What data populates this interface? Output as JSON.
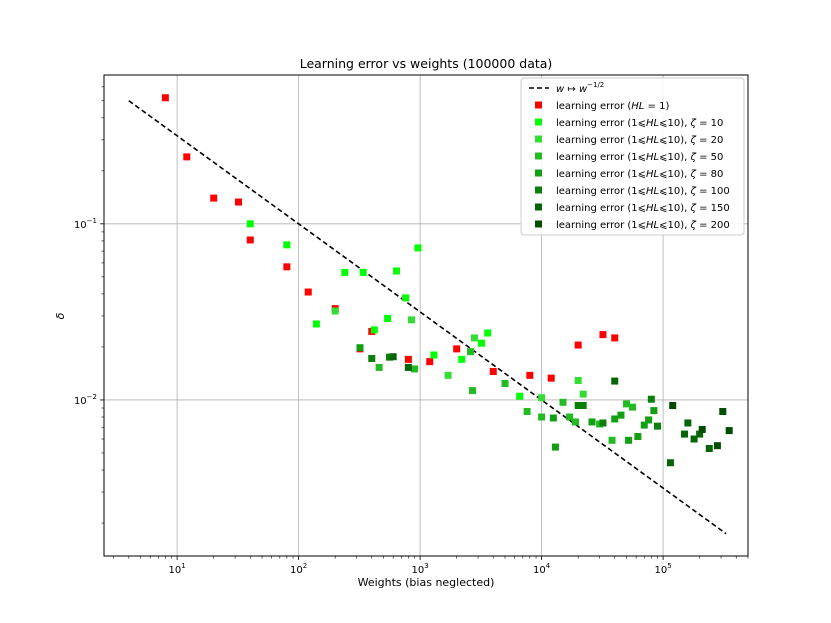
{
  "chart_data": {
    "type": "scatter",
    "title": "Learning error vs weights (100000 data)",
    "xlabel": "Weights (bias neglected)",
    "ylabel": "δ",
    "xscale": "log",
    "yscale": "log",
    "xlim": [
      2.5,
      500000
    ],
    "ylim": [
      0.0013,
      0.7
    ],
    "x_ticks": [
      {
        "value": 10,
        "base": "10",
        "exp": "1"
      },
      {
        "value": 100,
        "base": "10",
        "exp": "2"
      },
      {
        "value": 1000,
        "base": "10",
        "exp": "3"
      },
      {
        "value": 10000,
        "base": "10",
        "exp": "4"
      },
      {
        "value": 100000,
        "base": "10",
        "exp": "5"
      }
    ],
    "y_ticks": [
      {
        "value": 0.01,
        "base": "10",
        "exp": "−2"
      },
      {
        "value": 0.1,
        "base": "10",
        "exp": "−1"
      }
    ],
    "grid": true,
    "legend_position": "top-right",
    "reference_line": {
      "name": "w ↦ w^−1/2",
      "label_parts": {
        "w1": "w",
        "arrow": " ↦ ",
        "w2": "w",
        "exp": "−1/2"
      },
      "style": "dashed",
      "color": "#000000",
      "x": [
        4,
        330000
      ],
      "y": [
        0.5,
        0.00174
      ]
    },
    "series": [
      {
        "name": "learning error (HL = 1)",
        "label_parts": {
          "prefix": "learning error (",
          "hl": "HL",
          "suffix": " = 1)"
        },
        "color": "#ff0000",
        "points": [
          [
            8,
            0.52
          ],
          [
            12,
            0.24
          ],
          [
            20,
            0.14
          ],
          [
            32,
            0.133
          ],
          [
            40,
            0.081
          ],
          [
            80,
            0.057
          ],
          [
            120,
            0.041
          ],
          [
            200,
            0.033
          ],
          [
            320,
            0.0195
          ],
          [
            400,
            0.0245
          ],
          [
            800,
            0.017
          ],
          [
            1200,
            0.0165
          ],
          [
            2000,
            0.0195
          ],
          [
            4000,
            0.0145
          ],
          [
            8000,
            0.0138
          ],
          [
            12000,
            0.0133
          ],
          [
            20000,
            0.0205
          ],
          [
            32000,
            0.0235
          ],
          [
            40000,
            0.0225
          ]
        ]
      },
      {
        "name": "learning error (1⩽HL⩽10), ζ = 10",
        "label_parts": {
          "prefix": "learning error (1⩽",
          "hl": "HL",
          "mid": "⩽10), ",
          "zeta": "ζ",
          "suffix": " = 10"
        },
        "color": "#00ff00",
        "points": [
          [
            40,
            0.1
          ],
          [
            80,
            0.076
          ],
          [
            140,
            0.027
          ],
          [
            240,
            0.053
          ],
          [
            340,
            0.053
          ],
          [
            420,
            0.025
          ],
          [
            540,
            0.029
          ],
          [
            640,
            0.054
          ],
          [
            760,
            0.038
          ],
          [
            960,
            0.073
          ],
          [
            1300,
            0.018
          ],
          [
            2200,
            0.017
          ],
          [
            3200,
            0.021
          ],
          [
            3600,
            0.024
          ],
          [
            6600,
            0.0105
          ]
        ]
      },
      {
        "name": "learning error (1⩽HL⩽10), ζ = 20",
        "label_parts": {
          "prefix": "learning error (1⩽",
          "hl": "HL",
          "mid": "⩽10), ",
          "zeta": "ζ",
          "suffix": " = 20"
        },
        "color": "#33dd33",
        "points": [
          [
            200,
            0.032
          ],
          [
            850,
            0.0285
          ],
          [
            1700,
            0.0138
          ],
          [
            2800,
            0.0225
          ],
          [
            10000,
            0.0103
          ],
          [
            20000,
            0.0129
          ],
          [
            22000,
            0.0108
          ]
        ]
      },
      {
        "name": "learning error (1⩽HL⩽10), ζ = 50",
        "label_parts": {
          "prefix": "learning error (1⩽",
          "hl": "HL",
          "mid": "⩽10), ",
          "zeta": "ζ",
          "suffix": " = 50"
        },
        "color": "#22bb22",
        "points": [
          [
            460,
            0.0153
          ],
          [
            900,
            0.015
          ],
          [
            2600,
            0.0188
          ],
          [
            2700,
            0.0113
          ],
          [
            5000,
            0.0124
          ],
          [
            7600,
            0.0086
          ],
          [
            10000,
            0.008
          ],
          [
            15000,
            0.0097
          ],
          [
            17000,
            0.008
          ],
          [
            19000,
            0.0075
          ],
          [
            30000,
            0.0073
          ],
          [
            38000,
            0.0059
          ],
          [
            50000,
            0.0095
          ],
          [
            56000,
            0.0091
          ]
        ]
      },
      {
        "name": "learning error (1⩽HL⩽10), ζ = 80",
        "label_parts": {
          "prefix": "learning error (1⩽",
          "hl": "HL",
          "mid": "⩽10), ",
          "zeta": "ζ",
          "suffix": " = 80"
        },
        "color": "#11a011",
        "points": [
          [
            320,
            0.0198
          ],
          [
            12500,
            0.0079
          ],
          [
            13000,
            0.0054
          ],
          [
            26000,
            0.0075
          ],
          [
            40000,
            0.0078
          ],
          [
            45000,
            0.0082
          ],
          [
            52000,
            0.0059
          ],
          [
            62000,
            0.0062
          ],
          [
            70000,
            0.0072
          ],
          [
            76000,
            0.0077
          ],
          [
            84000,
            0.0087
          ]
        ]
      },
      {
        "name": "learning error (1⩽HL⩽10), ζ = 100",
        "label_parts": {
          "prefix": "learning error (1⩽",
          "hl": "HL",
          "mid": "⩽10), ",
          "zeta": "ζ",
          "suffix": " = 100"
        },
        "color": "#0a800a",
        "points": [
          [
            400,
            0.0172
          ],
          [
            560,
            0.0175
          ],
          [
            20000,
            0.0093
          ],
          [
            22000,
            0.0093
          ],
          [
            32000,
            0.0074
          ],
          [
            80000,
            0.0101
          ],
          [
            90000,
            0.0071
          ]
        ]
      },
      {
        "name": "learning error (1⩽HL⩽10), ζ = 150",
        "label_parts": {
          "prefix": "learning error (1⩽",
          "hl": "HL",
          "mid": "⩽10), ",
          "zeta": "ζ",
          "suffix": " = 150"
        },
        "color": "#066506",
        "points": [
          [
            600,
            0.0176
          ],
          [
            800,
            0.0153
          ],
          [
            40000,
            0.0128
          ],
          [
            115000,
            0.0044
          ],
          [
            150000,
            0.0064
          ],
          [
            160000,
            0.0074
          ],
          [
            180000,
            0.006
          ],
          [
            200000,
            0.0064
          ],
          [
            240000,
            0.0053
          ]
        ]
      },
      {
        "name": "learning error (1⩽HL⩽10), ζ = 200",
        "label_parts": {
          "prefix": "learning error (1⩽",
          "hl": "HL",
          "mid": "⩽10), ",
          "zeta": "ζ",
          "suffix": " = 200"
        },
        "color": "#004d00",
        "points": [
          [
            120000,
            0.0093
          ],
          [
            210000,
            0.0068
          ],
          [
            280000,
            0.0055
          ],
          [
            310000,
            0.0086
          ],
          [
            350000,
            0.0067
          ]
        ]
      }
    ]
  }
}
